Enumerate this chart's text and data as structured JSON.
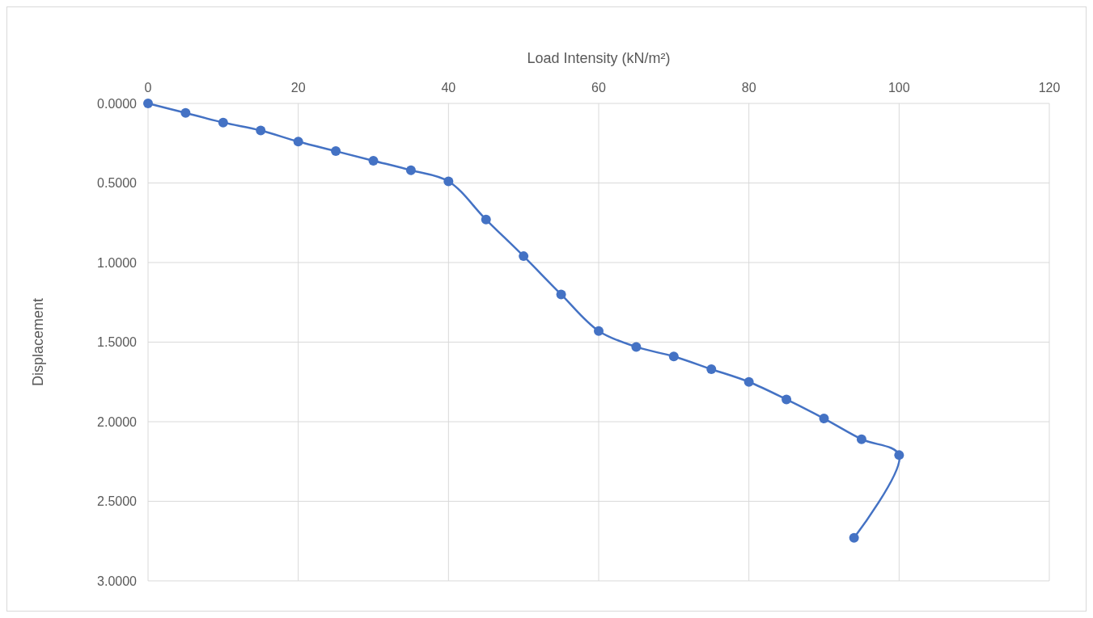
{
  "chart_data": {
    "type": "line",
    "xlabel": "Load Intensity (kN/m²)",
    "ylabel": "Displacement",
    "xlim": [
      0,
      120
    ],
    "xticks": [
      0,
      20,
      40,
      60,
      80,
      100,
      120
    ],
    "ylim": [
      3,
      0
    ],
    "yticks": [
      {
        "value": 0,
        "label": "0.0000"
      },
      {
        "value": 0.5,
        "label": "0.5000"
      },
      {
        "value": 1,
        "label": "1.0000"
      },
      {
        "value": 1.5,
        "label": "1.5000"
      },
      {
        "value": 2,
        "label": "2.0000"
      },
      {
        "value": 2.5,
        "label": "2.5000"
      },
      {
        "value": 3,
        "label": "3.0000"
      }
    ],
    "grid": true,
    "marker": "circle",
    "line_style": "solid",
    "series": [
      {
        "color": "#4472c4",
        "x": [
          0,
          5,
          10,
          15,
          20,
          25,
          30,
          35,
          40,
          45,
          50,
          55,
          60,
          65,
          70,
          75,
          80,
          85,
          90,
          95,
          100,
          94
        ],
        "values": [
          0,
          0.06,
          0.12,
          0.17,
          0.24,
          0.3,
          0.36,
          0.42,
          0.49,
          0.73,
          0.96,
          1.2,
          1.43,
          1.53,
          1.59,
          1.67,
          1.75,
          1.86,
          1.98,
          2.11,
          2.21,
          2.73
        ]
      }
    ]
  }
}
